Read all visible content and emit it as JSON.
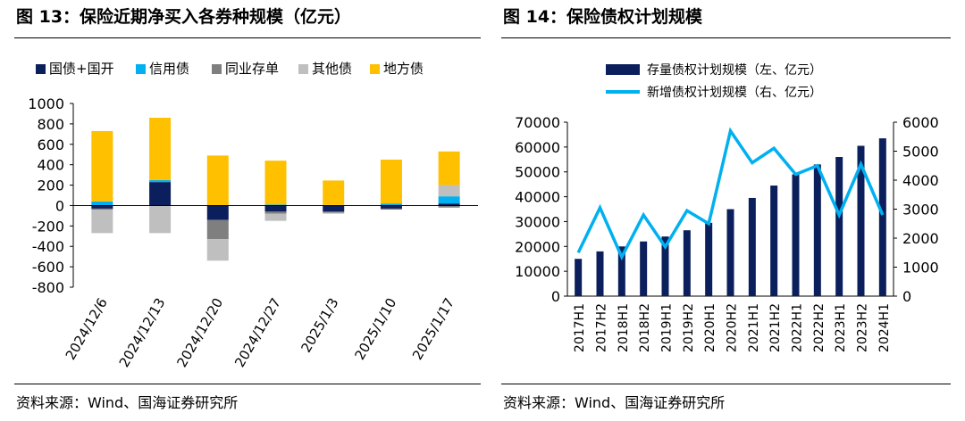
{
  "left_panel": {
    "title": "图 13：保险近期净买入各券种规模（亿元）",
    "source": "资料来源：Wind、国海证券研究所"
  },
  "right_panel": {
    "title": "图 14：保险债权计划规模",
    "source": "资料来源：Wind、国海证券研究所"
  },
  "chart_data": [
    {
      "type": "bar",
      "stacked": true,
      "title": "保险近期净买入各券种规模（亿元）",
      "categories": [
        "2024/12/6",
        "2024/12/13",
        "2024/12/20",
        "2024/12/27",
        "2025/1/3",
        "2025/1/10",
        "2025/1/17"
      ],
      "series": [
        {
          "name": "国债+国开",
          "color": "#0b1f5c",
          "values": [
            -30,
            230,
            -140,
            -60,
            -60,
            -30,
            20
          ]
        },
        {
          "name": "信用债",
          "color": "#00b0f0",
          "values": [
            40,
            20,
            0,
            10,
            5,
            20,
            70
          ]
        },
        {
          "name": "同业存单",
          "color": "#7f7f7f",
          "values": [
            -10,
            0,
            -190,
            -20,
            -10,
            -10,
            -20
          ]
        },
        {
          "name": "其他债",
          "color": "#bfbfbf",
          "values": [
            -230,
            -270,
            -210,
            -70,
            -10,
            0,
            110
          ]
        },
        {
          "name": "地方债",
          "color": "#ffc000",
          "values": [
            690,
            610,
            490,
            430,
            240,
            430,
            330
          ]
        }
      ],
      "ylim": [
        -800,
        1000
      ],
      "yticks": [
        -800,
        -600,
        -400,
        -200,
        0,
        200,
        400,
        600,
        800,
        1000
      ],
      "legend": "top"
    },
    {
      "type": "bar+line",
      "title": "保险债权计划规模",
      "categories": [
        "2017H1",
        "2017H2",
        "2018H1",
        "2018H2",
        "2019H1",
        "2019H2",
        "2020H1",
        "2020H2",
        "2021H1",
        "2021H2",
        "2022H1",
        "2022H2",
        "2023H1",
        "2023H2",
        "2024H1"
      ],
      "series": [
        {
          "name": "存量债权计划规模（左、亿元）",
          "type": "bar",
          "axis": "left",
          "color": "#0b1f5c",
          "values": [
            15000,
            18000,
            20000,
            22000,
            24000,
            26500,
            29500,
            35000,
            39500,
            44500,
            49000,
            53000,
            56000,
            60500,
            63500
          ]
        },
        {
          "name": "新增债权计划规模（右、亿元）",
          "type": "line",
          "axis": "right",
          "color": "#00b0f0",
          "values": [
            1500,
            3050,
            1350,
            2800,
            1700,
            2950,
            2500,
            5700,
            4600,
            5100,
            4200,
            4500,
            2800,
            4550,
            2800
          ]
        }
      ],
      "ylim_left": [
        0,
        70000
      ],
      "yticks_left": [
        0,
        10000,
        20000,
        30000,
        40000,
        50000,
        60000,
        70000
      ],
      "ylim_right": [
        0,
        6000
      ],
      "yticks_right": [
        0,
        1000,
        2000,
        3000,
        4000,
        5000,
        6000
      ],
      "legend": "top"
    }
  ]
}
